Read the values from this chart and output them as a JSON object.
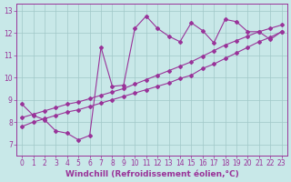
{
  "xlabel": "Windchill (Refroidissement éolien,°C)",
  "xlim": [
    -0.5,
    23.5
  ],
  "ylim": [
    6.5,
    13.3
  ],
  "xticks": [
    0,
    1,
    2,
    3,
    4,
    5,
    6,
    7,
    8,
    9,
    10,
    11,
    12,
    13,
    14,
    15,
    16,
    17,
    18,
    19,
    20,
    21,
    22,
    23
  ],
  "yticks": [
    7,
    8,
    9,
    10,
    11,
    12,
    13
  ],
  "bg_color": "#c8e8e8",
  "line_color": "#993399",
  "grid_color": "#a0c8c8",
  "zigzag_x": [
    0,
    1,
    2,
    3,
    4,
    5,
    6,
    7,
    8,
    9,
    10,
    11,
    12,
    13,
    14,
    15,
    16,
    17,
    18,
    19,
    20,
    21,
    22,
    23
  ],
  "zigzag_y": [
    8.8,
    8.3,
    8.1,
    7.6,
    7.5,
    7.2,
    7.4,
    11.35,
    9.6,
    9.65,
    12.2,
    12.75,
    12.2,
    11.85,
    11.6,
    12.45,
    12.1,
    11.55,
    12.6,
    12.5,
    12.05,
    12.05,
    11.7,
    12.05
  ],
  "straight1_x": [
    0,
    1,
    2,
    3,
    4,
    5,
    6,
    7,
    8,
    9,
    10,
    11,
    12,
    13,
    14,
    15,
    16,
    17,
    18,
    19,
    20,
    21,
    22,
    23
  ],
  "straight1_y": [
    7.8,
    8.0,
    8.15,
    8.3,
    8.45,
    8.55,
    8.7,
    8.85,
    9.0,
    9.15,
    9.3,
    9.45,
    9.6,
    9.75,
    9.95,
    10.1,
    10.4,
    10.6,
    10.85,
    11.1,
    11.35,
    11.6,
    11.8,
    12.05
  ],
  "straight2_x": [
    0,
    1,
    2,
    3,
    4,
    5,
    6,
    7,
    8,
    9,
    10,
    11,
    12,
    13,
    14,
    15,
    16,
    17,
    18,
    19,
    20,
    21,
    22,
    23
  ],
  "straight2_y": [
    8.2,
    8.35,
    8.5,
    8.65,
    8.8,
    8.9,
    9.05,
    9.2,
    9.35,
    9.5,
    9.7,
    9.9,
    10.1,
    10.3,
    10.5,
    10.7,
    10.95,
    11.2,
    11.45,
    11.65,
    11.85,
    12.05,
    12.2,
    12.35
  ],
  "font_size_tick": 5.5,
  "font_size_xlabel": 6.5
}
